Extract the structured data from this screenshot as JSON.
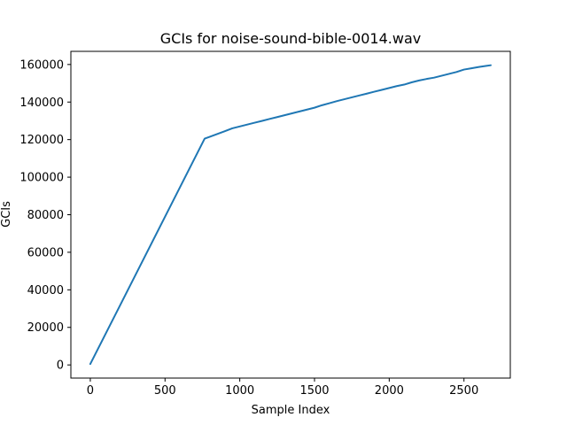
{
  "chart_data": {
    "type": "line",
    "title": "GCIs for noise-sound-bible-0014.wav",
    "xlabel": "Sample Index",
    "ylabel": "GCIs",
    "xlim": [
      -130,
      2810
    ],
    "ylim": [
      -7000,
      167000
    ],
    "xticks": [
      0,
      500,
      1000,
      1500,
      2000,
      2500
    ],
    "yticks": [
      0,
      20000,
      40000,
      60000,
      80000,
      100000,
      120000,
      140000,
      160000
    ],
    "grid": false,
    "series": [
      {
        "color": "#1f77b4",
        "x": [
          0,
          765,
          800,
          850,
          900,
          950,
          1000,
          1050,
          1100,
          1150,
          1200,
          1250,
          1300,
          1350,
          1400,
          1450,
          1500,
          1550,
          1600,
          1650,
          1700,
          1750,
          1800,
          1850,
          1900,
          1950,
          2000,
          2050,
          2100,
          2150,
          2200,
          2250,
          2300,
          2350,
          2400,
          2450,
          2500,
          2550,
          2600,
          2650,
          2679
        ],
        "y": [
          500,
          120500,
          121500,
          123000,
          124500,
          126000,
          127000,
          128000,
          129000,
          130000,
          131000,
          132000,
          133000,
          134000,
          135000,
          136000,
          137000,
          138300,
          139400,
          140500,
          141500,
          142500,
          143500,
          144500,
          145500,
          146500,
          147500,
          148500,
          149300,
          150500,
          151500,
          152300,
          153000,
          154000,
          155000,
          156000,
          157300,
          158000,
          158700,
          159300,
          159600
        ]
      }
    ]
  }
}
